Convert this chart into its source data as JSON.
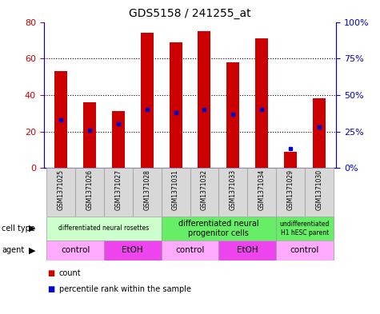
{
  "title": "GDS5158 / 241255_at",
  "samples": [
    "GSM1371025",
    "GSM1371026",
    "GSM1371027",
    "GSM1371028",
    "GSM1371031",
    "GSM1371032",
    "GSM1371033",
    "GSM1371034",
    "GSM1371029",
    "GSM1371030"
  ],
  "counts": [
    53,
    36,
    31,
    74,
    69,
    75,
    58,
    71,
    9,
    38
  ],
  "percentiles": [
    33,
    26,
    30,
    40,
    38,
    40,
    37,
    40,
    13,
    28
  ],
  "ylim_left": [
    0,
    80
  ],
  "ylim_right": [
    0,
    100
  ],
  "yticks_left": [
    0,
    20,
    40,
    60,
    80
  ],
  "ytick_labels_right": [
    "0%",
    "25%",
    "50%",
    "75%",
    "100%"
  ],
  "bar_color": "#cc0000",
  "percentile_color": "#0000cc",
  "cell_groups": [
    {
      "label": "differentiated neural rosettes",
      "start": 0,
      "end": 3,
      "color": "#ccffcc",
      "fontsize": 5.5
    },
    {
      "label": "differentiated neural\nprogenitor cells",
      "start": 4,
      "end": 7,
      "color": "#66ee66",
      "fontsize": 7
    },
    {
      "label": "undifferentiated\nH1 hESC parent",
      "start": 8,
      "end": 9,
      "color": "#66ee66",
      "fontsize": 5.5
    }
  ],
  "agent_groups": [
    {
      "label": "control",
      "start": 0,
      "end": 1,
      "color": "#ffaaff"
    },
    {
      "label": "EtOH",
      "start": 2,
      "end": 3,
      "color": "#ee44ee"
    },
    {
      "label": "control",
      "start": 4,
      "end": 5,
      "color": "#ffaaff"
    },
    {
      "label": "EtOH",
      "start": 6,
      "end": 7,
      "color": "#ee44ee"
    },
    {
      "label": "control",
      "start": 8,
      "end": 9,
      "color": "#ffaaff"
    }
  ],
  "bar_width": 0.45,
  "grid_lines": [
    20,
    40,
    60
  ],
  "sample_bg_color": "#d8d8d8",
  "sample_label_fontsize": 5.5
}
